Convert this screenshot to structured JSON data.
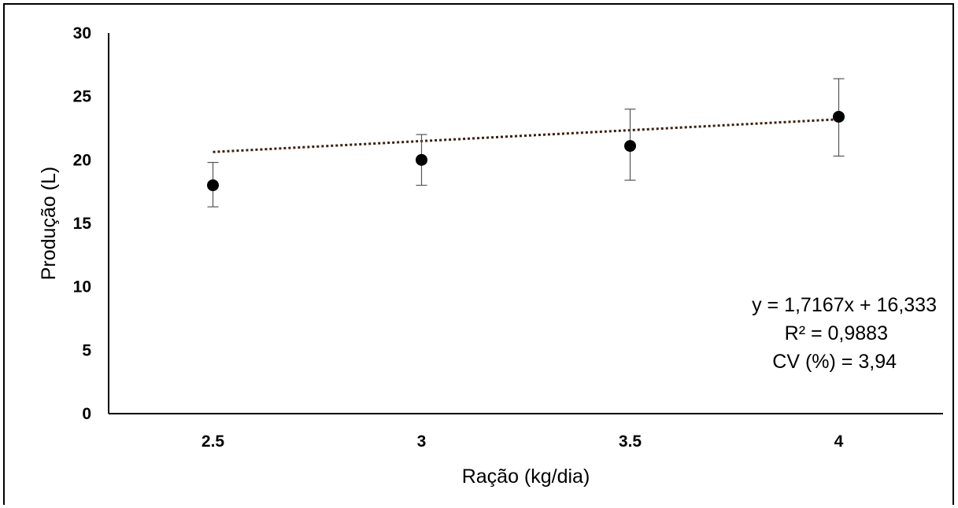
{
  "chart_data": {
    "type": "scatter",
    "title": "",
    "xlabel": "Ração (kg/dia)",
    "ylabel": "Produção (L)",
    "x_categories": [
      "2.5",
      "3",
      "3.5",
      "4"
    ],
    "ylim": [
      0,
      30
    ],
    "yticks": [
      "0",
      "5",
      "10",
      "15",
      "20",
      "25",
      "30"
    ],
    "grid": false,
    "legend": "none",
    "series": [
      {
        "x": [
          2.5,
          3,
          3.5,
          4
        ],
        "y": [
          18.0,
          20.0,
          21.1,
          23.4
        ],
        "error_low": [
          16.3,
          18.0,
          18.4,
          20.3
        ],
        "error_high": [
          19.8,
          22.0,
          24.0,
          26.4
        ],
        "color": "#000000"
      }
    ],
    "trendline": {
      "type": "linear",
      "slope": 1.7167,
      "intercept": 16.333,
      "style": "dotted",
      "color": "#3b1f0e"
    },
    "annotations": [
      "y = 1,7167x + 16,333",
      "R² = 0,9883",
      "CV (%) = 3,94"
    ]
  }
}
